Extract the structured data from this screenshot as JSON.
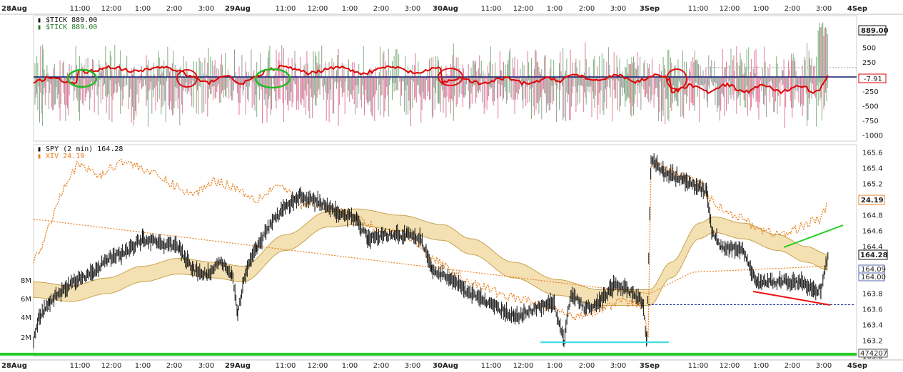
{
  "colors": {
    "tick_bar_pos": "#7fb07f",
    "tick_bar_neg": "#e07a9a",
    "tick_bar_gray": "#9a9a9a",
    "ma_red": "#e00000",
    "zero_line": "#0b1a6e",
    "circle_green": "#22bb22",
    "circle_red": "#dd1111",
    "price_black": "#111111",
    "xiv_orange": "#e8801e",
    "band_fill": "#efd59a",
    "band_edge": "#c9a24c",
    "support_cyan": "#33dddd",
    "dash_blue": "#1a2aa0",
    "trend_green": "#22cc22",
    "trend_red": "#ee1111",
    "volume_green": "#22cc22"
  },
  "top_axis": {
    "labels": [
      "28Aug",
      "11:00",
      "12:00",
      "1:00",
      "2:00",
      "3:00",
      "29Aug",
      "11:00",
      "12:00",
      "1:00",
      "2:00",
      "3:00",
      "30Aug",
      "11:00",
      "12:00",
      "1:00",
      "2:00",
      "3:00",
      "3Sep",
      "11:00",
      "12:00",
      "1:00",
      "2:00",
      "3:00",
      "4Sep"
    ],
    "bold": [
      "28Aug",
      "29Aug",
      "30Aug",
      "3Sep",
      "4Sep"
    ]
  },
  "bottom_axis": {
    "labels": [
      "28Aug",
      "11:00",
      "12:00",
      "1:00",
      "2:00",
      "3:00",
      "29Aug",
      "11:00",
      "12:00",
      "1:00",
      "2:00",
      "3:00",
      "30Aug",
      "11:00",
      "12:00",
      "1:00",
      "2:00",
      "3:00",
      "3Sep",
      "11:00",
      "12:00",
      "1:00",
      "2:00",
      "3:00",
      "4Sep"
    ],
    "bold": [
      "28Aug",
      "29Aug",
      "30Aug",
      "3Sep",
      "4Sep"
    ]
  },
  "tick_panel": {
    "legend_title": "$TICK 889.00",
    "legend_sub": "$TICK 889.00",
    "right_axis_ticks": [
      "750",
      "500",
      "250",
      "-250",
      "-500",
      "-750",
      "-1000"
    ],
    "current_value": "889.00",
    "ma_value": "-7.91"
  },
  "price_panel": {
    "legend_title": "SPY (2 min) 164.28",
    "legend_sub": "XIV 24.19",
    "right_axis_ticks": [
      "165.6",
      "165.4",
      "165.2",
      "164.8",
      "164.6",
      "164.4",
      "163.8",
      "163.6",
      "163.4",
      "163.2",
      "163.0"
    ],
    "current_price": "164.28",
    "xiv_value": "24.19",
    "band_upper": "164.09",
    "band_lower": "164.00",
    "band_top_hidden": "164.22",
    "volume_value": "474207",
    "volume_ticks": [
      "8M",
      "6M",
      "4M",
      "2M"
    ]
  },
  "chart_data": [
    {
      "type": "bar",
      "title": "$TICK",
      "ylim": [
        -1100,
        1050
      ],
      "annotations": "Red moving average of TICK; green and red ellipses mark crossovers around zero line",
      "last_value": 889.0
    },
    {
      "type": "line",
      "title": "SPY (2 min)",
      "ylim": [
        163.0,
        165.7
      ],
      "series": [
        {
          "name": "SPY (2 min)",
          "last": 164.28
        },
        {
          "name": "XIV",
          "last": 24.19
        }
      ],
      "annotations": {
        "support_line": 163.18,
        "dashed_level": 163.66,
        "bullish_divergence_green": "rising green trendline on XIV",
        "bearish_divergence_red": "falling red trendline on SPY lows"
      }
    }
  ]
}
